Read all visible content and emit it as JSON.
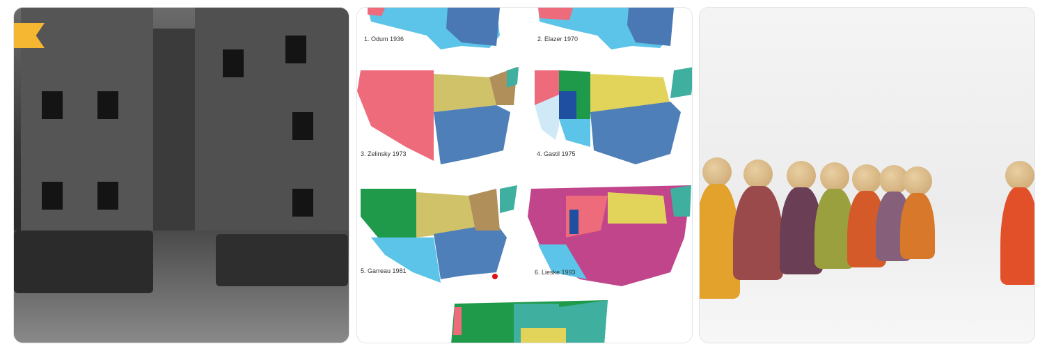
{
  "gallery": {
    "images": [
      {
        "subject": "abandoned brick tenement buildings with fire escapes and burnt-out cars, black and white",
        "bookmark_color": "#F5B731"
      },
      {
        "subject": "maps of US regional classifications",
        "maps": [
          {
            "label": "1. Odum 1936"
          },
          {
            "label": "2. Elazer 1970"
          },
          {
            "label": "3. Zelinsky 1973"
          },
          {
            "label": "4. Gastil 1975"
          },
          {
            "label": "5. Garreau 1981"
          },
          {
            "label": "6. Lieske 1993"
          }
        ]
      },
      {
        "subject": "row of colorful wooden peg dolls, one standing apart"
      }
    ]
  }
}
